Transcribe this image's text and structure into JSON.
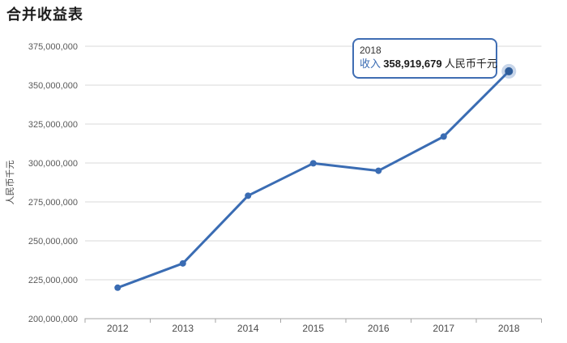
{
  "title": "合并收益表",
  "tooltip": {
    "year": "2018",
    "metric_label": "收入",
    "value": "358,919,679",
    "unit": "人民币千元"
  },
  "colors": {
    "line": "#3a6cb3",
    "point": "#3a6cb3",
    "highlight_dot": "#2f5d9a",
    "highlight_halo": "rgba(58,108,179,0.28)",
    "grid": "#d9d9d9",
    "axis": "#a6a6a6",
    "ytick_text": "#595959",
    "xtick_text": "#4a4a4a",
    "tooltip_border": "#3f6db3",
    "metric_text": "#3a6cb3"
  },
  "chart_data": {
    "type": "line",
    "title": "合并收益表",
    "xlabel": "",
    "ylabel": "人民币千元",
    "unit": "人民币千元",
    "categories": [
      "2012",
      "2013",
      "2014",
      "2015",
      "2016",
      "2017",
      "2018"
    ],
    "series": [
      {
        "name": "收入",
        "values": [
          219900000,
          235500000,
          279000000,
          299800000,
          295000000,
          317000000,
          358919679
        ]
      }
    ],
    "ylim": [
      200000000,
      375000000
    ],
    "ytick_step": 25000000,
    "ytick_labels": [
      "200,000,000",
      "225,000,000",
      "250,000,000",
      "275,000,000",
      "300,000,000",
      "325,000,000",
      "350,000,000",
      "375,000,000"
    ],
    "grid": true,
    "legend_position": "none",
    "highlighted_point": {
      "category": "2018",
      "series": "收入",
      "value": 358919679
    }
  }
}
